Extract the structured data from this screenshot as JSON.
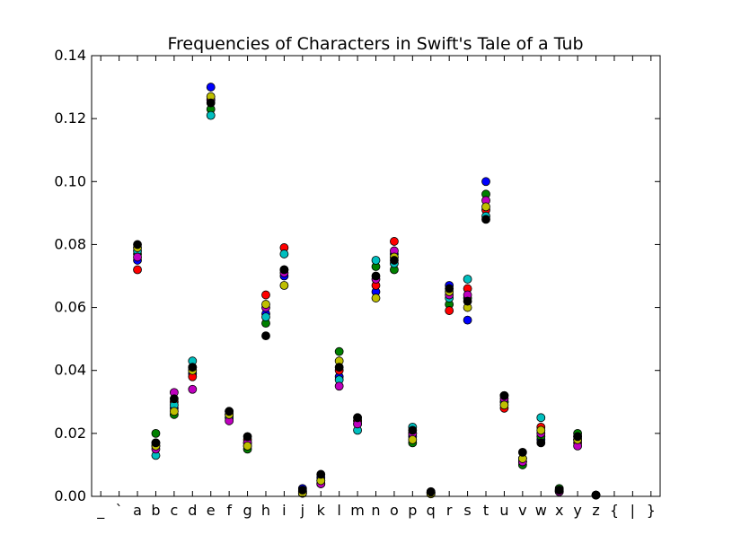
{
  "chart_data": {
    "type": "scatter",
    "title": "Frequencies of Characters in Swift's Tale of a Tub",
    "xlabel": "",
    "ylabel": "",
    "ylim": [
      0.0,
      0.14
    ],
    "y_ticks": [
      "0.00",
      "0.02",
      "0.04",
      "0.06",
      "0.08",
      "0.10",
      "0.12",
      "0.14"
    ],
    "categories": [
      "_",
      "`",
      "a",
      "b",
      "c",
      "d",
      "e",
      "f",
      "g",
      "h",
      "i",
      "j",
      "k",
      "l",
      "m",
      "n",
      "o",
      "p",
      "q",
      "r",
      "s",
      "t",
      "u",
      "v",
      "w",
      "x",
      "y",
      "z",
      "{",
      "|",
      "}"
    ],
    "grid": false,
    "legend": "none",
    "marker_colors": {
      "blue": "#0000ff",
      "green": "#008000",
      "red": "#ff0000",
      "cyan": "#00bfbf",
      "magenta": "#bf00bf",
      "yellow": "#bfbf00",
      "black": "#000000"
    },
    "series": [
      {
        "color": "blue",
        "values": {
          "a": 0.075,
          "b": 0.016,
          "c": 0.028,
          "d": 0.039,
          "e": 0.13,
          "f": 0.025,
          "g": 0.017,
          "h": 0.058,
          "i": 0.07,
          "j": 0.0025,
          "k": 0.006,
          "l": 0.038,
          "m": 0.024,
          "n": 0.065,
          "o": 0.077,
          "p": 0.019,
          "q": 0.0012,
          "r": 0.067,
          "s": 0.056,
          "t": 0.1,
          "u": 0.03,
          "v": 0.011,
          "w": 0.018,
          "x": 0.002,
          "y": 0.018,
          "z": 0.0004
        }
      },
      {
        "color": "green",
        "values": {
          "a": 0.077,
          "b": 0.02,
          "c": 0.026,
          "d": 0.041,
          "e": 0.123,
          "f": 0.027,
          "g": 0.015,
          "h": 0.055,
          "i": 0.072,
          "j": 0.001,
          "k": 0.004,
          "l": 0.046,
          "m": 0.023,
          "n": 0.073,
          "o": 0.072,
          "p": 0.017,
          "q": 0.0012,
          "r": 0.061,
          "s": 0.063,
          "t": 0.096,
          "u": 0.032,
          "v": 0.01,
          "w": 0.019,
          "x": 0.0025,
          "y": 0.02,
          "z": 0.0004
        }
      },
      {
        "color": "red",
        "values": {
          "a": 0.072,
          "b": 0.017,
          "c": 0.03,
          "d": 0.038,
          "e": 0.126,
          "f": 0.026,
          "g": 0.018,
          "h": 0.064,
          "i": 0.079,
          "j": 0.001,
          "k": 0.005,
          "l": 0.04,
          "m": 0.024,
          "n": 0.067,
          "o": 0.081,
          "p": 0.02,
          "q": 0.0012,
          "r": 0.059,
          "s": 0.066,
          "t": 0.091,
          "u": 0.028,
          "v": 0.012,
          "w": 0.022,
          "x": 0.0015,
          "y": 0.017,
          "z": 0.0004
        }
      },
      {
        "color": "cyan",
        "values": {
          "a": 0.078,
          "b": 0.013,
          "c": 0.029,
          "d": 0.043,
          "e": 0.121,
          "f": 0.025,
          "g": 0.016,
          "h": 0.057,
          "i": 0.077,
          "j": 0.0015,
          "k": 0.004,
          "l": 0.037,
          "m": 0.021,
          "n": 0.075,
          "o": 0.074,
          "p": 0.022,
          "q": 0.0012,
          "r": 0.063,
          "s": 0.069,
          "t": 0.089,
          "u": 0.03,
          "v": 0.011,
          "w": 0.025,
          "x": 0.0015,
          "y": 0.019,
          "z": 0.0004
        }
      },
      {
        "color": "magenta",
        "values": {
          "a": 0.076,
          "b": 0.015,
          "c": 0.033,
          "d": 0.034,
          "e": 0.126,
          "f": 0.024,
          "g": 0.017,
          "h": 0.06,
          "i": 0.071,
          "j": 0.0015,
          "k": 0.004,
          "l": 0.035,
          "m": 0.023,
          "n": 0.069,
          "o": 0.078,
          "p": 0.02,
          "q": 0.0008,
          "r": 0.064,
          "s": 0.064,
          "t": 0.094,
          "u": 0.031,
          "v": 0.011,
          "w": 0.02,
          "x": 0.0015,
          "y": 0.016,
          "z": 0.0004
        }
      },
      {
        "color": "yellow",
        "values": {
          "a": 0.079,
          "b": 0.016,
          "c": 0.027,
          "d": 0.04,
          "e": 0.127,
          "f": 0.026,
          "g": 0.016,
          "h": 0.061,
          "i": 0.067,
          "j": 0.001,
          "k": 0.005,
          "l": 0.043,
          "m": 0.025,
          "n": 0.063,
          "o": 0.076,
          "p": 0.018,
          "q": 0.0008,
          "r": 0.065,
          "s": 0.06,
          "t": 0.092,
          "u": 0.029,
          "v": 0.012,
          "w": 0.021,
          "x": 0.002,
          "y": 0.018,
          "z": 0.0004
        }
      },
      {
        "color": "black",
        "values": {
          "a": 0.08,
          "b": 0.017,
          "c": 0.031,
          "d": 0.041,
          "e": 0.125,
          "f": 0.027,
          "g": 0.019,
          "h": 0.051,
          "i": 0.072,
          "j": 0.002,
          "k": 0.007,
          "l": 0.041,
          "m": 0.025,
          "n": 0.07,
          "o": 0.075,
          "p": 0.021,
          "q": 0.0015,
          "r": 0.066,
          "s": 0.062,
          "t": 0.088,
          "u": 0.032,
          "v": 0.014,
          "w": 0.017,
          "x": 0.002,
          "y": 0.019,
          "z": 0.0004
        }
      }
    ]
  }
}
